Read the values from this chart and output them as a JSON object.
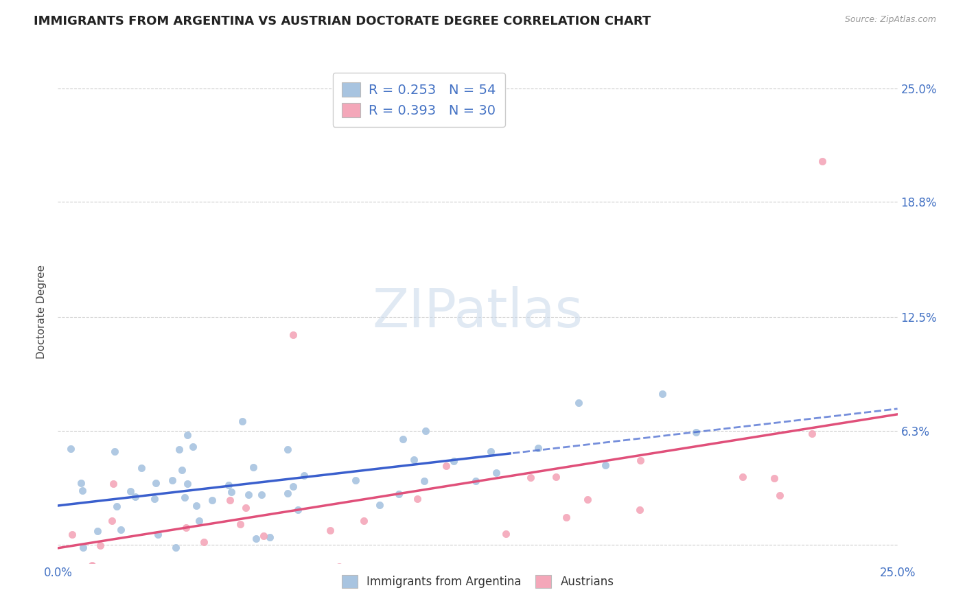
{
  "title": "IMMIGRANTS FROM ARGENTINA VS AUSTRIAN DOCTORATE DEGREE CORRELATION CHART",
  "source": "Source: ZipAtlas.com",
  "ylabel": "Doctorate Degree",
  "watermark": "ZIPatlas",
  "legend_label1": "Immigrants from Argentina",
  "legend_label2": "Austrians",
  "R1": 0.253,
  "N1": 54,
  "R2": 0.393,
  "N2": 30,
  "color1": "#a8c4e0",
  "color2": "#f4a7b9",
  "line_color1": "#3a5fcd",
  "line_color2": "#e0507a",
  "xlim": [
    0.0,
    0.25
  ],
  "ylim": [
    -0.01,
    0.265
  ],
  "ytick_positions": [
    0.0,
    0.0625,
    0.125,
    0.188,
    0.25
  ],
  "ytick_labels": [
    "",
    "6.3%",
    "12.5%",
    "18.8%",
    "25.0%"
  ],
  "grid_color": "#cccccc",
  "title_fontsize": 13,
  "axis_label_fontsize": 11,
  "tick_label_color": "#4472c4",
  "tick_label_fontsize": 12,
  "background_color": "#ffffff",
  "blue_line_solid_end": 0.135,
  "blue_line_start_y": 0.022,
  "blue_line_end_y_solid": 0.048,
  "blue_line_end_y_dashed": 0.057,
  "pink_line_start_y": 0.005,
  "pink_line_end_y": 0.063
}
